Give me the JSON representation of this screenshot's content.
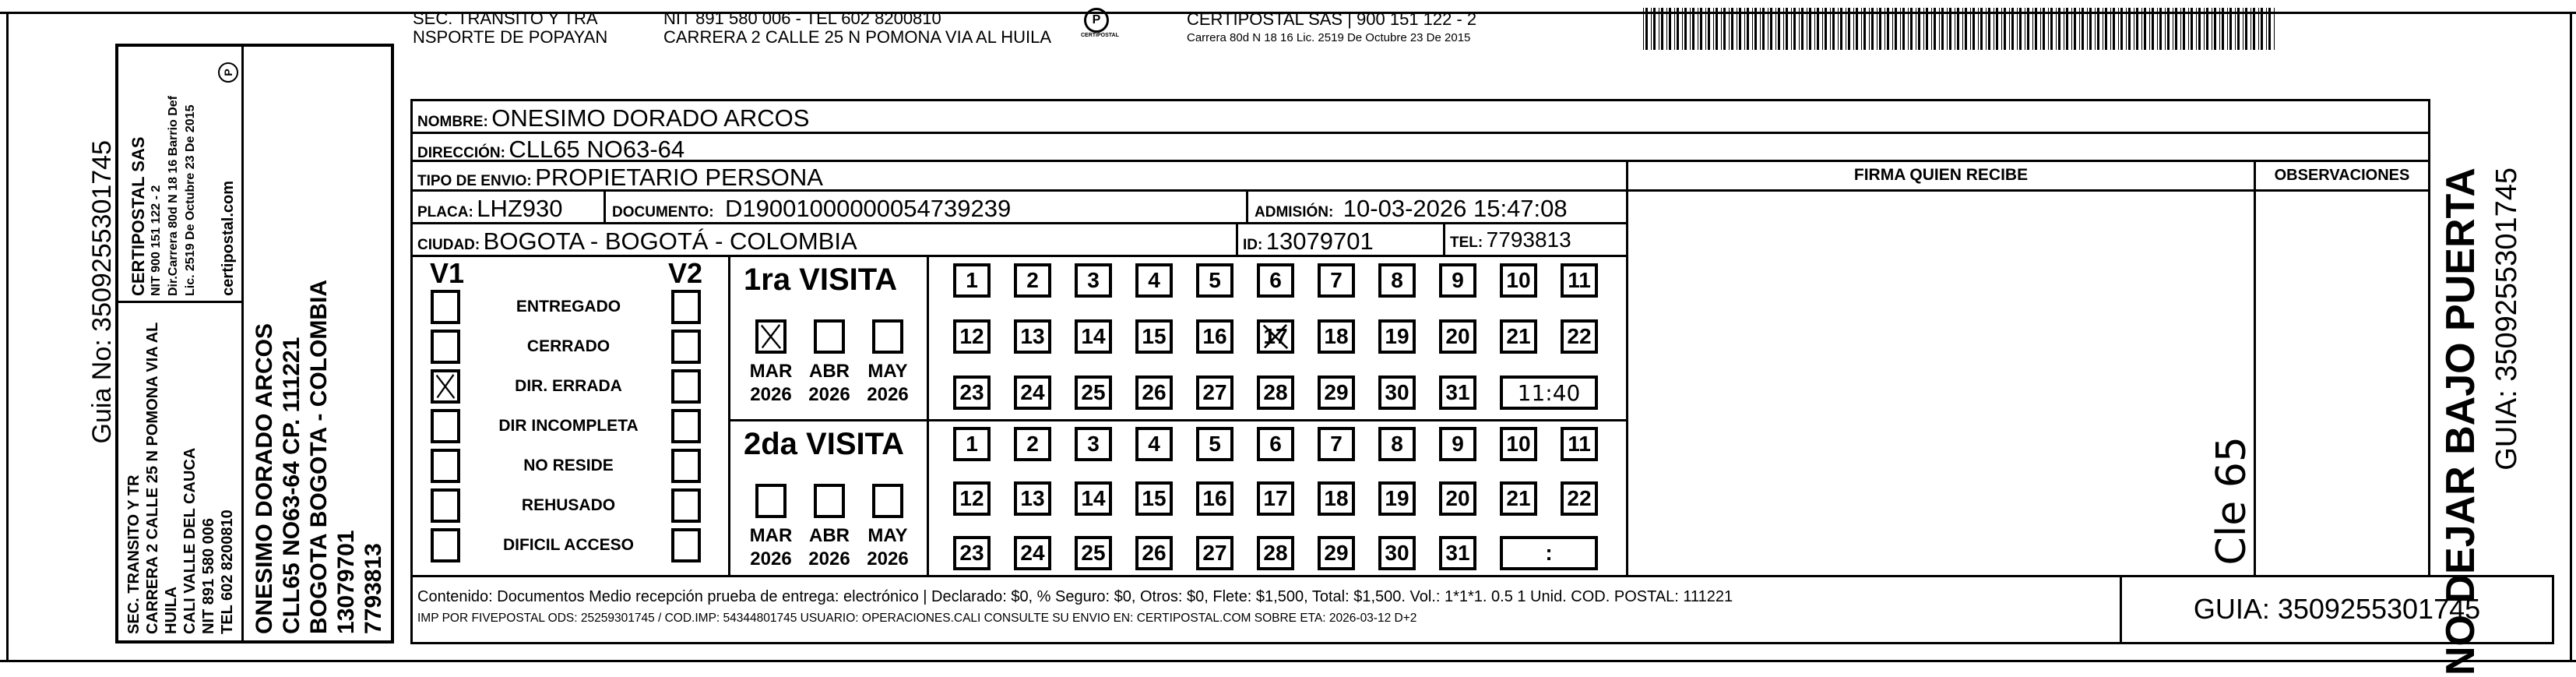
{
  "stub": {
    "guia_no": "Guia No: 3509255301745",
    "sender_lines": [
      "SEC. TRANSITO Y TR",
      "CARRERA 2 CALLE 25 N POMONA VIA AL HUILA",
      "CALI VALLE DEL CAUCA",
      "NIT 891 580 006",
      "TEL 602 8200810"
    ],
    "courier_lines": [
      "CERTIPOSTAL SAS",
      "NIT 900 151 122 - 2",
      "Dir.Carrera 80d N 18 16 Barrio Def",
      "Lic. 2519 De Octubre 23 De 2015"
    ],
    "courier_web": "certipostal.com",
    "recipient_lines": [
      "ONESIMO DORADO ARCOS",
      "CLL65 NO63-64 CP. 111221",
      "BOGOTA BOGOTA - COLOMBIA",
      "13079701",
      "7793813"
    ]
  },
  "header": {
    "sender_name": [
      "SEC. TRANSITO Y TRA",
      "NSPORTE DE POPAYAN"
    ],
    "sender_nit": "NIT 891 580 006 - TEL 602 8200810",
    "sender_address": "CARRERA 2 CALLE 25 N POMONA VIA AL HUILA",
    "logo_text": "CERTIPOSTAL",
    "courier": "CERTIPOSTAL SAS | 900 151 122 - 2",
    "courier_address": "Carrera 80d N 18 16  Lic. 2519 De Octubre 23 De 2015",
    "barcode_icon": "barcode"
  },
  "form": {
    "nombre_label": "NOMBRE:",
    "nombre": "ONESIMO DORADO ARCOS",
    "direccion_label": "DIRECCIÓN:",
    "direccion": "CLL65 NO63-64",
    "tipo_label": "TIPO DE ENVIO:",
    "tipo": "PROPIETARIO PERSONA",
    "placa_label": "PLACA:",
    "placa": "LHZ930",
    "documento_label": "DOCUMENTO:",
    "documento": "D19001000000054739239",
    "admision_label": "ADMISIÓN:",
    "admision": "10-03-2026 15:47:08",
    "ciudad_label": "CIUDAD:",
    "ciudad": "BOGOTA - BOGOTÁ - COLOMBIA",
    "id_label": "ID:",
    "id": "13079701",
    "tel_label": "TEL:",
    "tel": "7793813",
    "firma_label": "FIRMA QUIEN RECIBE",
    "observaciones_label": "OBSERVACIONES",
    "handwritten_note": "Cle 65"
  },
  "status": {
    "v1_label": "V1",
    "v2_label": "V2",
    "options": [
      {
        "label": "ENTREGADO",
        "v1": false,
        "v2": false
      },
      {
        "label": "CERRADO",
        "v1": false,
        "v2": false
      },
      {
        "label": "DIR. ERRADA",
        "v1": true,
        "v2": false
      },
      {
        "label": "DIR INCOMPLETA",
        "v1": false,
        "v2": false
      },
      {
        "label": "NO RESIDE",
        "v1": false,
        "v2": false
      },
      {
        "label": "REHUSADO",
        "v1": false,
        "v2": false
      },
      {
        "label": "DIFICIL ACCESO",
        "v1": false,
        "v2": false
      }
    ]
  },
  "visits": [
    {
      "title": "1ra VISITA",
      "months": [
        {
          "m": "MAR",
          "y": "2026",
          "checked": true
        },
        {
          "m": "ABR",
          "y": "2026",
          "checked": false
        },
        {
          "m": "MAY",
          "y": "2026",
          "checked": false
        }
      ],
      "day_marked": 17,
      "time": "11:40"
    },
    {
      "title": "2da VISITA",
      "months": [
        {
          "m": "MAR",
          "y": "2026",
          "checked": false
        },
        {
          "m": "ABR",
          "y": "2026",
          "checked": false
        },
        {
          "m": "MAY",
          "y": "2026",
          "checked": false
        }
      ],
      "day_marked": null,
      "time": ":"
    }
  ],
  "footer": {
    "contenido": "Contenido: Documentos Medio recepción prueba de entrega: electrónico | Declarado: $0, % Seguro: $0, Otros: $0, Flete: $1,500, Total: $1,500. Vol.: 1*1*1. 0.5  1 Unid. COD. POSTAL: 111221",
    "imp": "IMP POR FIVEPOSTAL ODS: 25259301745 / COD.IMP: 54344801745 USUARIO: OPERACIONES.CALI CONSULTE SU ENVIO EN: CERTIPOSTAL.COM SOBRE ETA: 2026-03-12 D+2",
    "guia": "GUIA: 3509255301745"
  },
  "side": {
    "warning": "NO DEJAR BAJO PUERTA",
    "guia": "GUIA: 3509255301745"
  }
}
